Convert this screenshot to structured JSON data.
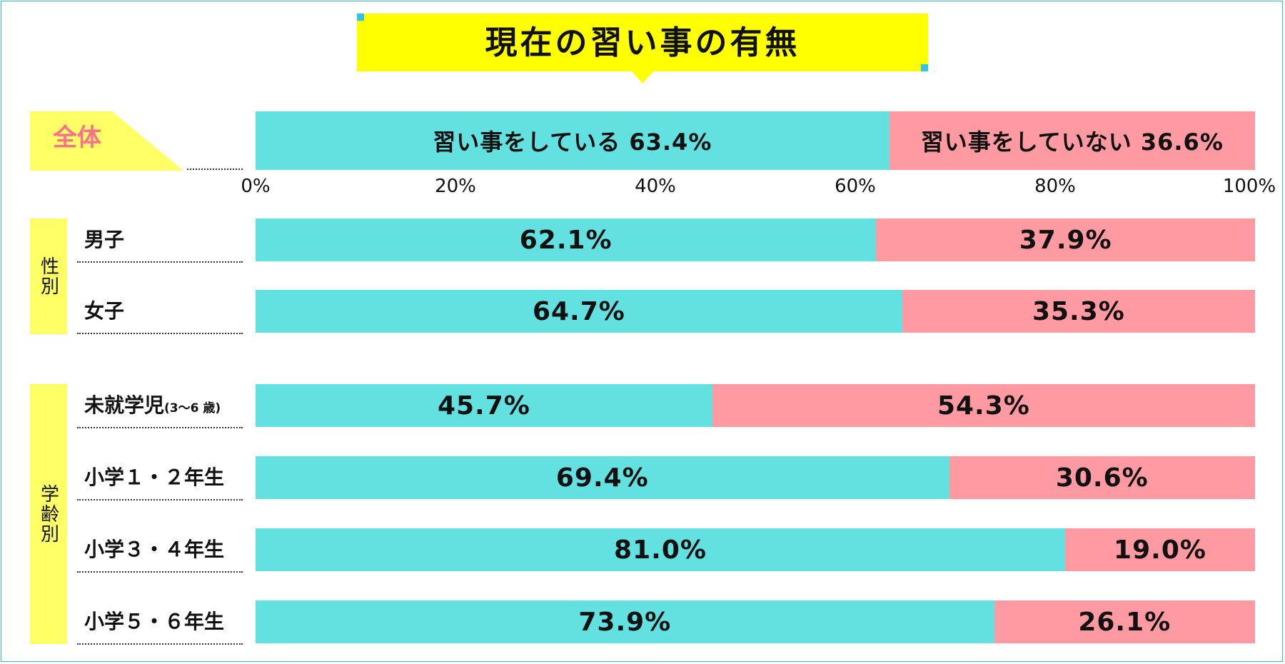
{
  "chart_data": {
    "type": "bar",
    "orientation": "horizontal-stacked-100",
    "title": "現在の習い事の有無",
    "x_ticks": [
      "0%",
      "20%",
      "40%",
      "60%",
      "80%",
      "100%"
    ],
    "xlim": [
      0,
      100
    ],
    "overall": {
      "label": "全体",
      "yes_label": "習い事をしている 63.4%",
      "no_label": "習い事をしていない 36.6%",
      "yes": 63.4,
      "no": 36.6
    },
    "groups": [
      {
        "label": "性別",
        "rows": [
          {
            "label": "男子",
            "label_note": "",
            "yes": 62.1,
            "no": 37.9,
            "yes_text": "62.1%",
            "no_text": "37.9%"
          },
          {
            "label": "女子",
            "label_note": "",
            "yes": 64.7,
            "no": 35.3,
            "yes_text": "64.7%",
            "no_text": "35.3%"
          }
        ]
      },
      {
        "label": "学齢別",
        "rows": [
          {
            "label": "未就学児",
            "label_note": "(3〜6 歳)",
            "yes": 45.7,
            "no": 54.3,
            "yes_text": "45.7%",
            "no_text": "54.3%"
          },
          {
            "label": "小学１・２年生",
            "label_note": "",
            "yes": 69.4,
            "no": 30.6,
            "yes_text": "69.4%",
            "no_text": "30.6%"
          },
          {
            "label": "小学３・４年生",
            "label_note": "",
            "yes": 81.0,
            "no": 19.0,
            "yes_text": "81.0%",
            "no_text": "19.0%"
          },
          {
            "label": "小学５・６年生",
            "label_note": "",
            "yes": 73.9,
            "no": 26.1,
            "yes_text": "73.9%",
            "no_text": "26.1%"
          }
        ]
      }
    ],
    "colors": {
      "yes": "#63e0e0",
      "no": "#ff9aa2",
      "label_bg": "#ffff66",
      "title_bg": "#ffff00",
      "overall_label": "#ff6f8e"
    }
  }
}
